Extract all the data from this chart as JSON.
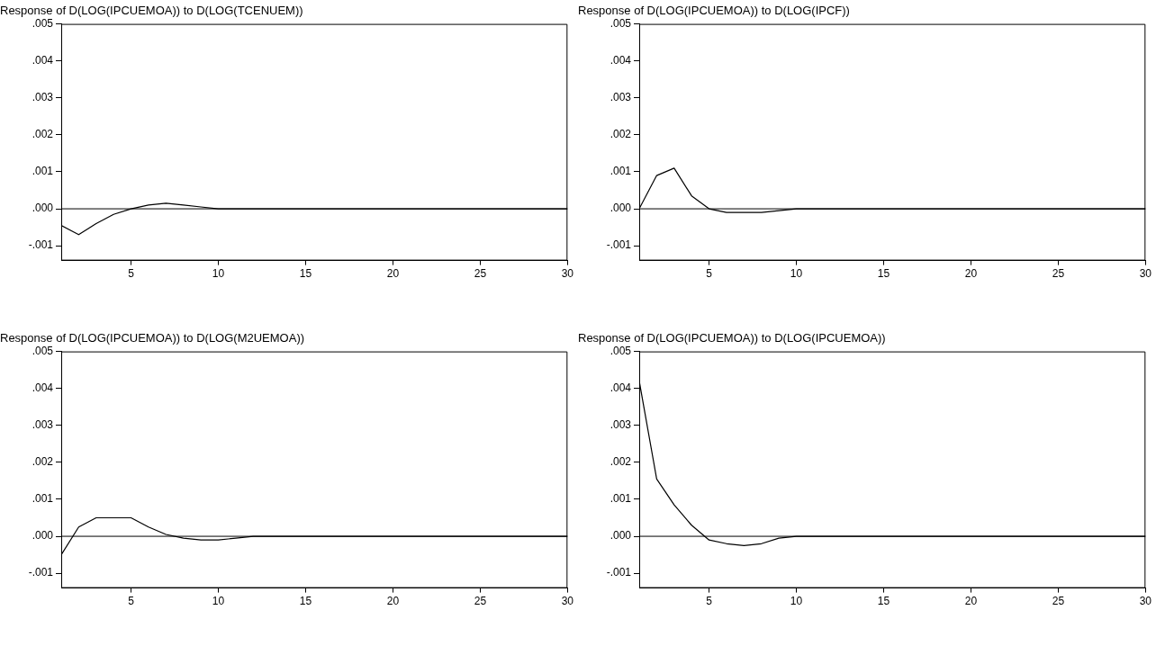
{
  "chart_data": [
    {
      "type": "line",
      "title": "Response of D(LOG(IPCUEMOA)) to D(LOG(TCENUEM))",
      "x": [
        1,
        2,
        3,
        4,
        5,
        6,
        7,
        8,
        9,
        10,
        11,
        12,
        13,
        14,
        15,
        16,
        17,
        18,
        19,
        20,
        21,
        22,
        23,
        24,
        25,
        26,
        27,
        28,
        29,
        30
      ],
      "series": [
        {
          "color": "#000000",
          "values": [
            -0.00045,
            -0.0007,
            -0.0004,
            -0.00015,
            0,
            0.0001,
            0.00015,
            0.0001,
            5e-05,
            0,
            0,
            0,
            0,
            0,
            0,
            0,
            0,
            0,
            0,
            0,
            0,
            0,
            0,
            0,
            0,
            0,
            0,
            0,
            0,
            0
          ]
        }
      ],
      "xlim": [
        1,
        30
      ],
      "xticks": [
        5,
        10,
        15,
        20,
        25,
        30
      ],
      "ylim": [
        -0.0014,
        0.005
      ],
      "yticks": [
        {
          "value": -0.001,
          "label": "-.001"
        },
        {
          "value": 0,
          "label": ".000"
        },
        {
          "value": 0.001,
          "label": ".001"
        },
        {
          "value": 0.002,
          "label": ".002"
        },
        {
          "value": 0.003,
          "label": ".003"
        },
        {
          "value": 0.004,
          "label": ".004"
        },
        {
          "value": 0.005,
          "label": ".005"
        }
      ],
      "ref_lines": [
        {
          "axis": "y",
          "value": 0,
          "color": "#000000"
        }
      ],
      "grid": false,
      "legend": false
    },
    {
      "type": "line",
      "title": "Response of D(LOG(IPCUEMOA)) to D(LOG(IPCF))",
      "x": [
        1,
        2,
        3,
        4,
        5,
        6,
        7,
        8,
        9,
        10,
        11,
        12,
        13,
        14,
        15,
        16,
        17,
        18,
        19,
        20,
        21,
        22,
        23,
        24,
        25,
        26,
        27,
        28,
        29,
        30
      ],
      "series": [
        {
          "color": "#000000",
          "values": [
            0,
            0.0009,
            0.0011,
            0.00035,
            0,
            -0.0001,
            -0.0001,
            -0.0001,
            -5e-05,
            0,
            0,
            0,
            0,
            0,
            0,
            0,
            0,
            0,
            0,
            0,
            0,
            0,
            0,
            0,
            0,
            0,
            0,
            0,
            0,
            0
          ]
        }
      ],
      "xlim": [
        1,
        30
      ],
      "xticks": [
        5,
        10,
        15,
        20,
        25,
        30
      ],
      "ylim": [
        -0.0014,
        0.005
      ],
      "yticks": [
        {
          "value": -0.001,
          "label": "-.001"
        },
        {
          "value": 0,
          "label": ".000"
        },
        {
          "value": 0.001,
          "label": ".001"
        },
        {
          "value": 0.002,
          "label": ".002"
        },
        {
          "value": 0.003,
          "label": ".003"
        },
        {
          "value": 0.004,
          "label": ".004"
        },
        {
          "value": 0.005,
          "label": ".005"
        }
      ],
      "ref_lines": [
        {
          "axis": "y",
          "value": 0,
          "color": "#000000"
        }
      ],
      "grid": false,
      "legend": false
    },
    {
      "type": "line",
      "title": "Response of D(LOG(IPCUEMOA)) to D(LOG(M2UEMOA))",
      "x": [
        1,
        2,
        3,
        4,
        5,
        6,
        7,
        8,
        9,
        10,
        11,
        12,
        13,
        14,
        15,
        16,
        17,
        18,
        19,
        20,
        21,
        22,
        23,
        24,
        25,
        26,
        27,
        28,
        29,
        30
      ],
      "series": [
        {
          "color": "#000000",
          "values": [
            -0.0005,
            0.00025,
            0.0005,
            0.0005,
            0.0005,
            0.00025,
            5e-05,
            -5e-05,
            -0.0001,
            -0.0001,
            -5e-05,
            0,
            0,
            0,
            0,
            0,
            0,
            0,
            0,
            0,
            0,
            0,
            0,
            0,
            0,
            0,
            0,
            0,
            0,
            0
          ]
        }
      ],
      "xlim": [
        1,
        30
      ],
      "xticks": [
        5,
        10,
        15,
        20,
        25,
        30
      ],
      "ylim": [
        -0.0014,
        0.005
      ],
      "yticks": [
        {
          "value": -0.001,
          "label": "-.001"
        },
        {
          "value": 0,
          "label": ".000"
        },
        {
          "value": 0.001,
          "label": ".001"
        },
        {
          "value": 0.002,
          "label": ".002"
        },
        {
          "value": 0.003,
          "label": ".003"
        },
        {
          "value": 0.004,
          "label": ".004"
        },
        {
          "value": 0.005,
          "label": ".005"
        }
      ],
      "ref_lines": [
        {
          "axis": "y",
          "value": 0,
          "color": "#000000"
        }
      ],
      "grid": false,
      "legend": false
    },
    {
      "type": "line",
      "title": "Response of D(LOG(IPCUEMOA)) to D(LOG(IPCUEMOA))",
      "x": [
        1,
        2,
        3,
        4,
        5,
        6,
        7,
        8,
        9,
        10,
        11,
        12,
        13,
        14,
        15,
        16,
        17,
        18,
        19,
        20,
        21,
        22,
        23,
        24,
        25,
        26,
        27,
        28,
        29,
        30
      ],
      "series": [
        {
          "color": "#000000",
          "values": [
            0.0042,
            0.00155,
            0.00085,
            0.0003,
            -0.0001,
            -0.0002,
            -0.00025,
            -0.0002,
            -5e-05,
            0,
            0,
            0,
            0,
            0,
            0,
            0,
            0,
            0,
            0,
            0,
            0,
            0,
            0,
            0,
            0,
            0,
            0,
            0,
            0,
            0
          ]
        }
      ],
      "xlim": [
        1,
        30
      ],
      "xticks": [
        5,
        10,
        15,
        20,
        25,
        30
      ],
      "ylim": [
        -0.0014,
        0.005
      ],
      "yticks": [
        {
          "value": -0.001,
          "label": "-.001"
        },
        {
          "value": 0,
          "label": ".000"
        },
        {
          "value": 0.001,
          "label": ".001"
        },
        {
          "value": 0.002,
          "label": ".002"
        },
        {
          "value": 0.003,
          "label": ".003"
        },
        {
          "value": 0.004,
          "label": ".004"
        },
        {
          "value": 0.005,
          "label": ".005"
        }
      ],
      "ref_lines": [
        {
          "axis": "y",
          "value": 0,
          "color": "#000000"
        }
      ],
      "grid": false,
      "legend": false
    }
  ]
}
